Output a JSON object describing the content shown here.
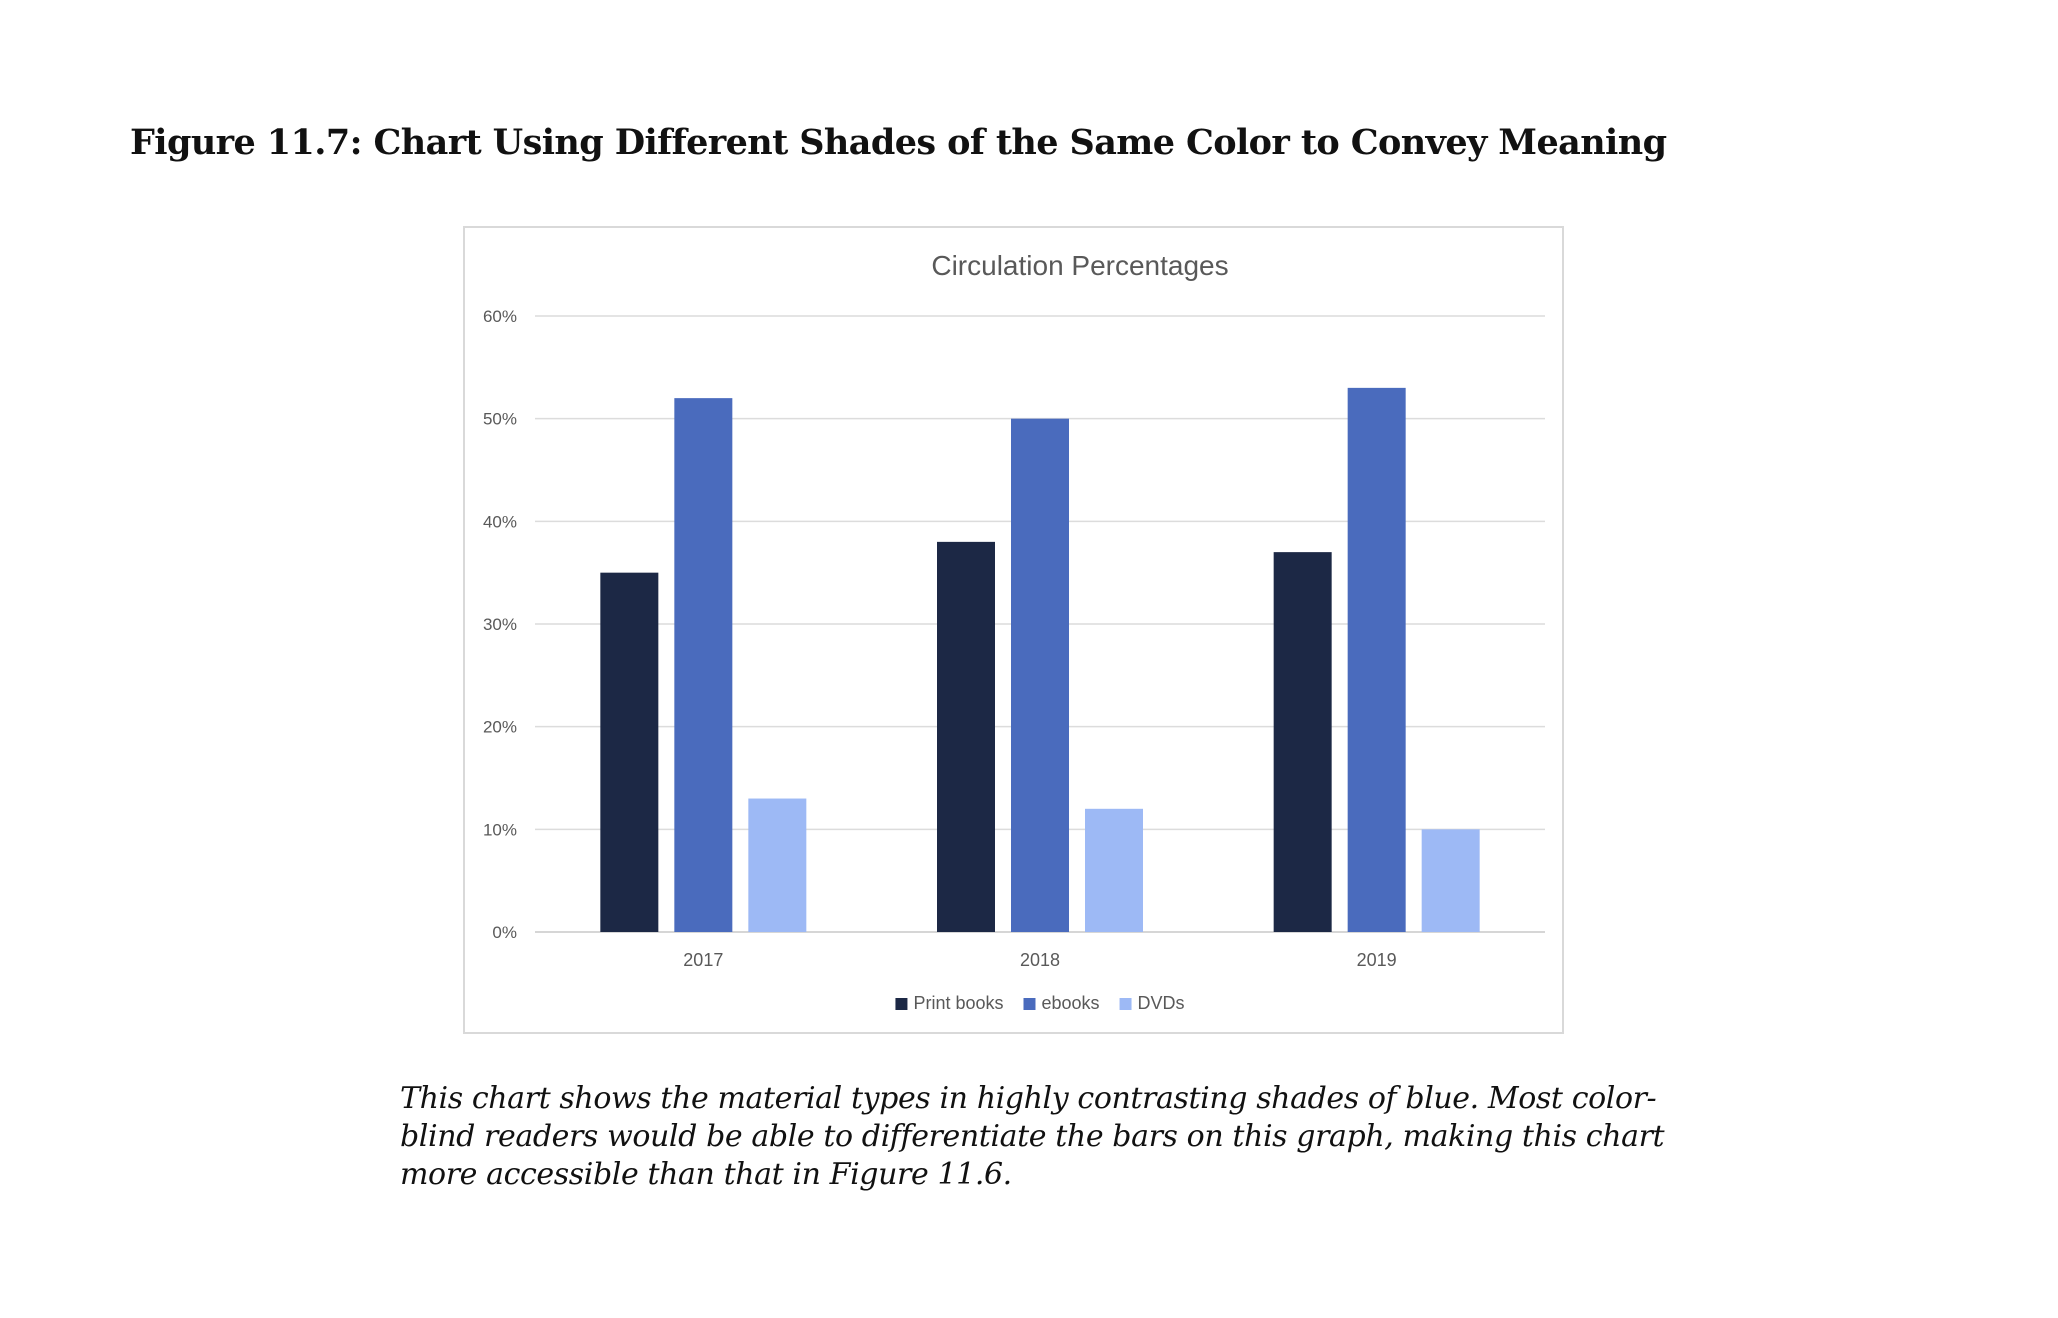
{
  "figure_title": "Figure 11.7: Chart Using Different Shades of the Same Color to Convey Meaning",
  "caption": "This chart shows the material types in highly contrasting shades of blue. Most color-blind readers would be able to differentiate the bars on this graph, making this chart more accessible than that in Figure 11.6.",
  "chart_data": {
    "type": "bar",
    "title": "Circulation Percentages",
    "categories": [
      "2017",
      "2018",
      "2019"
    ],
    "series": [
      {
        "name": "Print books",
        "values": [
          35,
          38,
          37
        ],
        "color": "#1c2845"
      },
      {
        "name": "ebooks",
        "values": [
          52,
          50,
          53
        ],
        "color": "#4a6bbd"
      },
      {
        "name": "DVDs",
        "values": [
          13,
          12,
          10
        ],
        "color": "#9db9f5"
      }
    ],
    "ylim": [
      0,
      60
    ],
    "yticks": [
      0,
      10,
      20,
      30,
      40,
      50,
      60
    ],
    "ytick_labels": [
      "0%",
      "10%",
      "20%",
      "30%",
      "40%",
      "50%",
      "60%"
    ],
    "xlabel": "",
    "ylabel": "",
    "grid": true,
    "legend": "bottom"
  }
}
